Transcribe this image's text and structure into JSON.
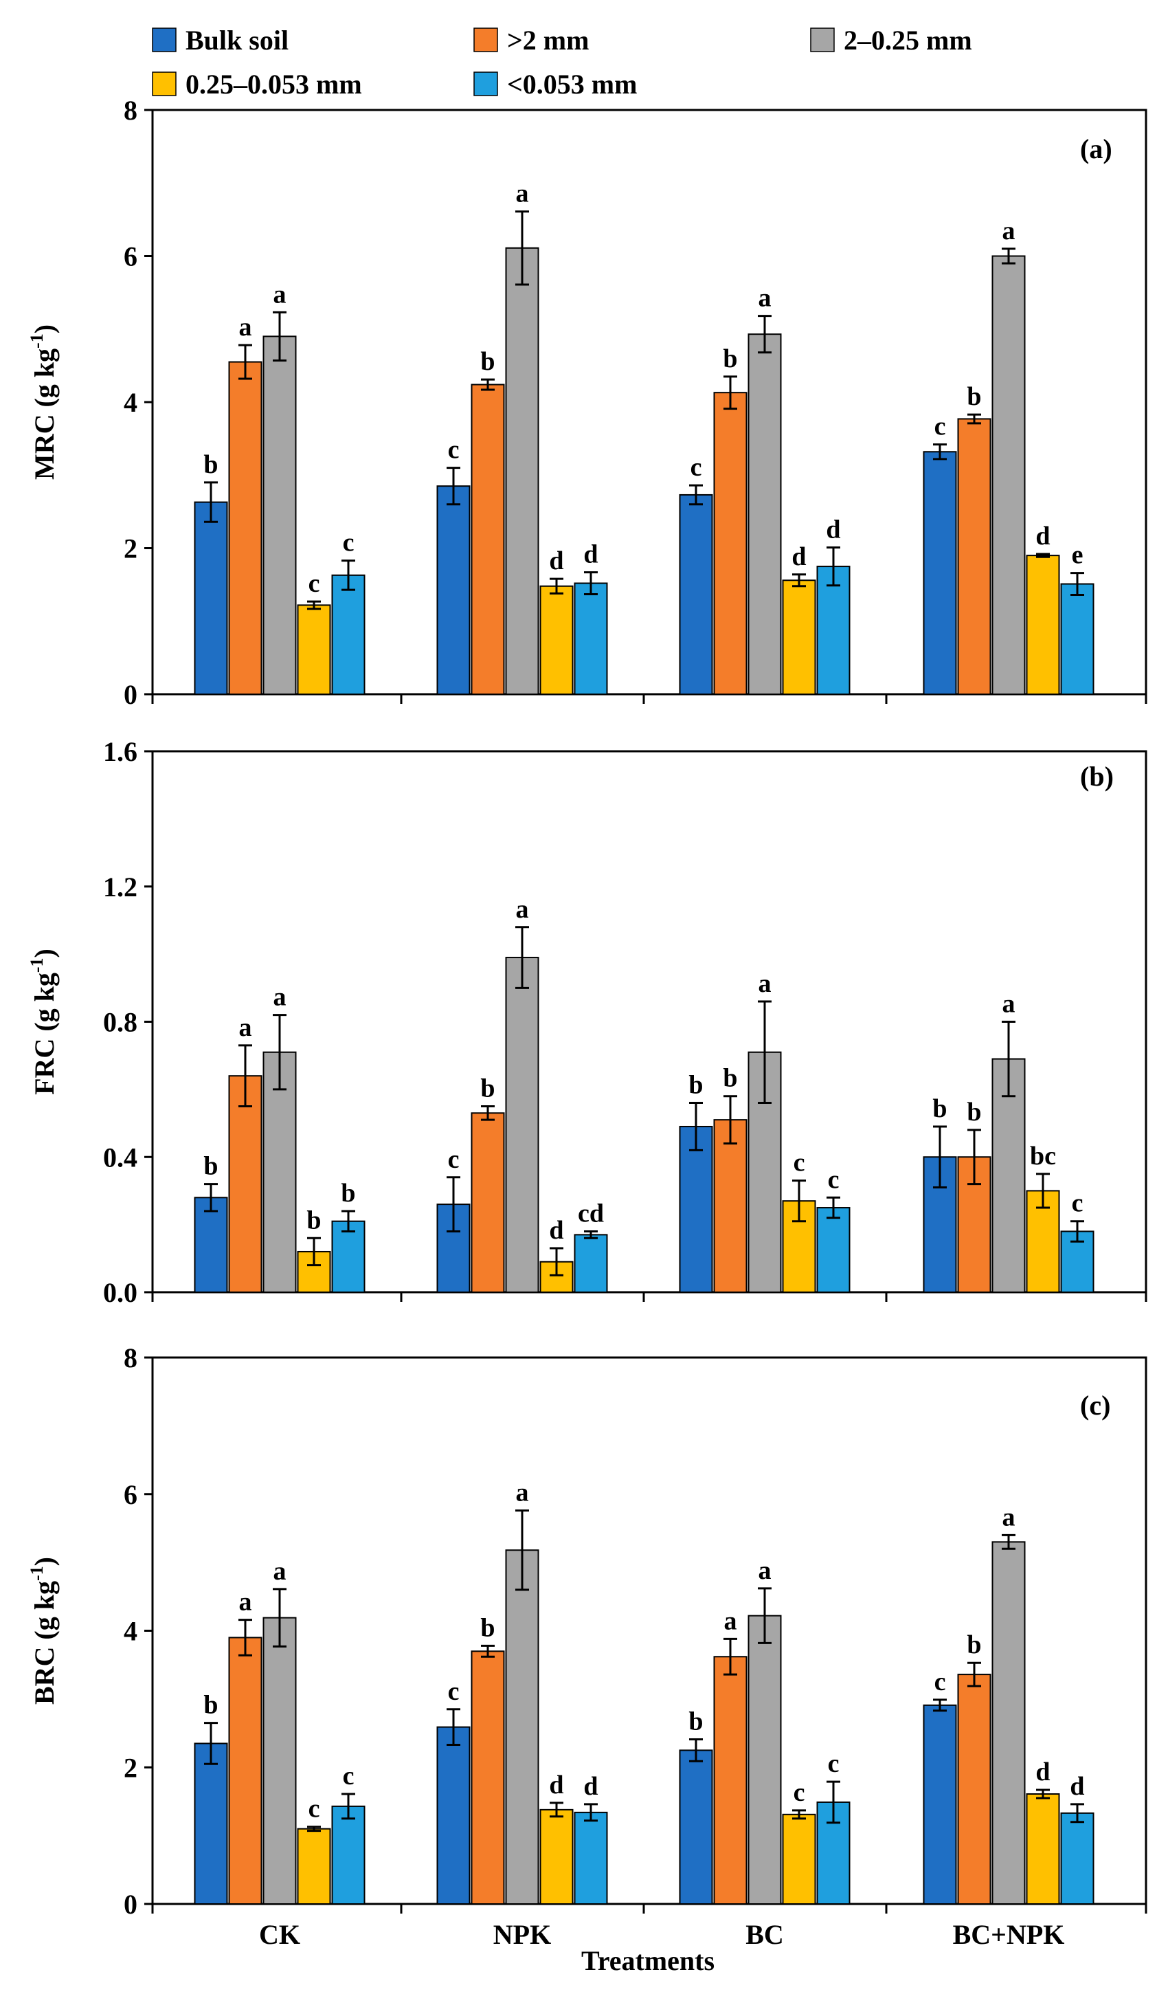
{
  "chart_data": {
    "type": "bar",
    "categories": [
      "CK",
      "NPK",
      "BC",
      "BC+NPK"
    ],
    "xlabel": "Treatments",
    "legend": {
      "placement": "top",
      "entries": [
        {
          "name": "Bulk soil",
          "color": "#1F6FC4"
        },
        {
          "name": ">2 mm",
          "color": "#F47D2A"
        },
        {
          "name": "2–0.25 mm",
          "color": "#A6A6A6"
        },
        {
          "name": "0.25–0.053 mm",
          "color": "#FFC000"
        },
        {
          "name": "<0.053 mm",
          "color": "#1F9FDE"
        }
      ]
    },
    "panels": [
      {
        "label": "(a)",
        "ylabel": "MRC (g kg",
        "ylabel_sup": "-1",
        "ylabel_close": ")",
        "ylim": [
          0,
          8
        ],
        "yticks": [
          "0",
          "2",
          "4",
          "6",
          "8"
        ],
        "series": [
          {
            "name": "Bulk soil",
            "values": [
              2.63,
              2.85,
              2.73,
              3.32
            ],
            "errors": [
              0.27,
              0.25,
              0.13,
              0.1
            ],
            "letters": [
              "b",
              "c",
              "c",
              "c"
            ]
          },
          {
            "name": ">2 mm",
            "values": [
              4.55,
              4.24,
              4.13,
              3.77
            ],
            "errors": [
              0.23,
              0.07,
              0.22,
              0.06
            ],
            "letters": [
              "a",
              "b",
              "b",
              "b"
            ]
          },
          {
            "name": "2–0.25 mm",
            "values": [
              4.9,
              6.11,
              4.93,
              6.0
            ],
            "errors": [
              0.33,
              0.5,
              0.25,
              0.1
            ],
            "letters": [
              "a",
              "a",
              "a",
              "a"
            ]
          },
          {
            "name": "0.25–0.053 mm",
            "values": [
              1.22,
              1.48,
              1.56,
              1.9
            ],
            "errors": [
              0.05,
              0.1,
              0.08,
              0.02
            ],
            "letters": [
              "c",
              "d",
              "d",
              "d"
            ]
          },
          {
            "name": "<0.053 mm",
            "values": [
              1.63,
              1.52,
              1.75,
              1.51
            ],
            "errors": [
              0.2,
              0.15,
              0.26,
              0.15
            ],
            "letters": [
              "c",
              "d",
              "d",
              "e"
            ]
          }
        ]
      },
      {
        "label": "(b)",
        "ylabel": "FRC (g kg",
        "ylabel_sup": "-1",
        "ylabel_close": ")",
        "ylim": [
          0,
          1.6
        ],
        "yticks": [
          "0.0",
          "0.4",
          "0.8",
          "1.2",
          "1.6"
        ],
        "series": [
          {
            "name": "Bulk soil",
            "values": [
              0.28,
              0.26,
              0.49,
              0.4
            ],
            "errors": [
              0.04,
              0.08,
              0.07,
              0.09
            ],
            "letters": [
              "b",
              "c",
              "b",
              "b"
            ]
          },
          {
            "name": ">2 mm",
            "values": [
              0.64,
              0.53,
              0.51,
              0.4
            ],
            "errors": [
              0.09,
              0.02,
              0.07,
              0.08
            ],
            "letters": [
              "a",
              "b",
              "b",
              "b"
            ]
          },
          {
            "name": "2–0.25 mm",
            "values": [
              0.71,
              0.99,
              0.71,
              0.69
            ],
            "errors": [
              0.11,
              0.09,
              0.15,
              0.11
            ],
            "letters": [
              "a",
              "a",
              "a",
              "a"
            ]
          },
          {
            "name": "0.25–0.053 mm",
            "values": [
              0.12,
              0.09,
              0.27,
              0.3
            ],
            "errors": [
              0.04,
              0.04,
              0.06,
              0.05
            ],
            "letters": [
              "b",
              "d",
              "c",
              "bc"
            ]
          },
          {
            "name": "<0.053 mm",
            "values": [
              0.21,
              0.17,
              0.25,
              0.18
            ],
            "errors": [
              0.03,
              0.01,
              0.03,
              0.03
            ],
            "letters": [
              "b",
              "cd",
              "c",
              "c"
            ]
          }
        ]
      },
      {
        "label": "(c)",
        "ylabel": "BRC (g kg",
        "ylabel_sup": "-1",
        "ylabel_close": ")",
        "ylim": [
          0,
          8
        ],
        "yticks": [
          "0",
          "2",
          "4",
          "6",
          "8"
        ],
        "series": [
          {
            "name": "Bulk soil",
            "values": [
              2.35,
              2.59,
              2.25,
              2.91
            ],
            "errors": [
              0.3,
              0.26,
              0.16,
              0.08
            ],
            "letters": [
              "b",
              "c",
              "b",
              "c"
            ]
          },
          {
            "name": ">2 mm",
            "values": [
              3.9,
              3.7,
              3.62,
              3.36
            ],
            "errors": [
              0.26,
              0.08,
              0.26,
              0.17
            ],
            "letters": [
              "a",
              "b",
              "a",
              "b"
            ]
          },
          {
            "name": "2–0.25 mm",
            "values": [
              4.19,
              5.18,
              4.22,
              5.3
            ],
            "errors": [
              0.42,
              0.58,
              0.4,
              0.1
            ],
            "letters": [
              "a",
              "a",
              "a",
              "a"
            ]
          },
          {
            "name": "0.25–0.053 mm",
            "values": [
              1.1,
              1.38,
              1.31,
              1.61
            ],
            "errors": [
              0.03,
              0.1,
              0.06,
              0.06
            ],
            "letters": [
              "c",
              "d",
              "c",
              "d"
            ]
          },
          {
            "name": "<0.053 mm",
            "values": [
              1.43,
              1.34,
              1.49,
              1.33
            ],
            "errors": [
              0.18,
              0.12,
              0.3,
              0.13
            ],
            "letters": [
              "c",
              "d",
              "c",
              "d"
            ]
          }
        ]
      }
    ]
  }
}
